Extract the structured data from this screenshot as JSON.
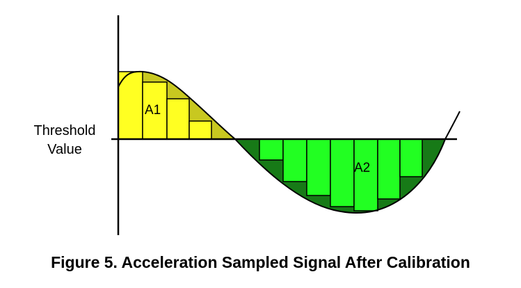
{
  "threshold_label_line1": "Threshold",
  "threshold_label_line2": "Value",
  "area1_label": "A1",
  "area2_label": "A2",
  "caption": "Figure 5.  Acceleration Sampled Signal After Calibration",
  "colors": {
    "positive_sample_fill": "#ffff22",
    "positive_residual_fill": "#c8c820",
    "negative_sample_fill": "#22ff22",
    "negative_residual_fill": "#177a17",
    "lines": "#000000",
    "background": "#ffffff"
  }
}
